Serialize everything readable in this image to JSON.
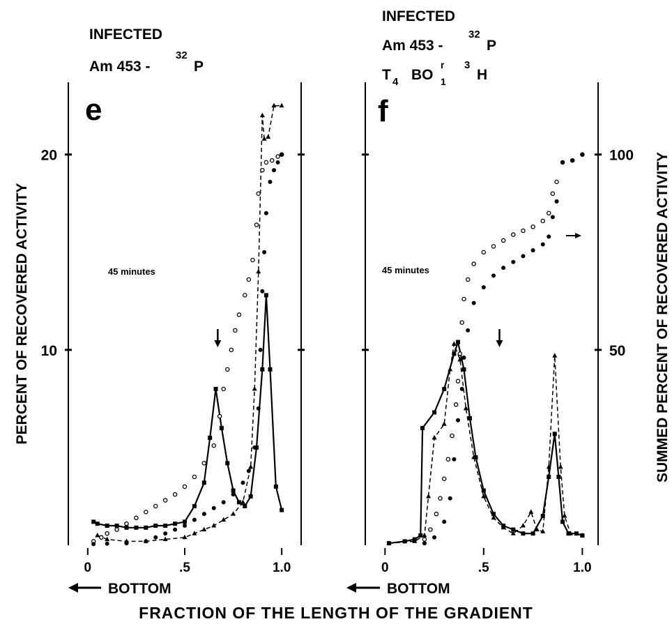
{
  "chart_data": [
    {
      "type": "line",
      "panel": "e",
      "header": [
        [
          "INFECTED"
        ],
        [
          "Am 453 -",
          "32",
          "P"
        ]
      ],
      "annotation": "45 minutes",
      "bottom_label": "BOTTOM",
      "ylabel": "PERCENT OF RECOVERED ACTIVITY",
      "xlabel": "FRACTION OF THE LENGTH OF THE GRADIENT",
      "xlim": [
        -0.1,
        1.1
      ],
      "xticks": [
        0,
        {
          "value": 0.5,
          "label": ".5"
        },
        {
          "value": 1,
          "label": "1.0"
        }
      ],
      "ylim": [
        0,
        23.7
      ],
      "yticks": [
        10,
        20
      ],
      "ytick_labels": true,
      "y2lim": [
        0,
        118.5
      ],
      "y2ticks": [
        50,
        100
      ],
      "y2tick_labels": false,
      "arrow_x": 0.67,
      "series": [
        {
          "color": "#000",
          "line": "solid",
          "marker": "square",
          "x": [
            0.03,
            0.05,
            0.1,
            0.15,
            0.2,
            0.25,
            0.3,
            0.35,
            0.4,
            0.45,
            0.5,
            0.55,
            0.6,
            0.63,
            0.66,
            0.69,
            0.72,
            0.75,
            0.78,
            0.81,
            0.84,
            0.87,
            0.9,
            0.92,
            0.94,
            0.97,
            1.0
          ],
          "values": [
            1.2,
            1.1,
            1.0,
            1.0,
            0.9,
            0.9,
            0.9,
            1.0,
            1.0,
            1.1,
            1.2,
            2.0,
            3.2,
            5.5,
            8.0,
            6.0,
            4.2,
            2.8,
            2.2,
            2.0,
            2.5,
            5.0,
            9.0,
            12.8,
            9.0,
            3.0,
            1.8
          ]
        },
        {
          "color": "#000",
          "line": "dashed",
          "marker": "triangle",
          "x": [
            0.05,
            0.1,
            0.2,
            0.3,
            0.4,
            0.5,
            0.55,
            0.6,
            0.65,
            0.7,
            0.75,
            0.8,
            0.84,
            0.86,
            0.88,
            0.9,
            0.91,
            0.93,
            0.96,
            1.0
          ],
          "values": [
            0.5,
            0.3,
            0.2,
            0.2,
            0.3,
            0.4,
            0.6,
            0.8,
            1.0,
            1.3,
            1.6,
            2.2,
            4.0,
            8.0,
            14.0,
            22.0,
            20.8,
            20.9,
            22.5,
            22.5
          ]
        },
        {
          "color": "#000",
          "line": "none",
          "marker": "open-circle",
          "axis": "y2",
          "x": [
            0.03,
            0.07,
            0.1,
            0.15,
            0.2,
            0.25,
            0.3,
            0.35,
            0.4,
            0.45,
            0.5,
            0.55,
            0.6,
            0.65,
            0.68,
            0.7,
            0.72,
            0.74,
            0.76,
            0.78,
            0.81,
            0.83,
            0.85,
            0.87,
            0.88,
            0.9,
            0.92,
            0.95,
            0.98,
            1.0
          ],
          "values": [
            1,
            2,
            3,
            4,
            5.5,
            7,
            8.5,
            10,
            11.5,
            13,
            15,
            17.5,
            21,
            25.5,
            33,
            40,
            45,
            50,
            55,
            59,
            64,
            68,
            73,
            82,
            90,
            96,
            98,
            98.5,
            99.5,
            100
          ]
        },
        {
          "color": "#000",
          "line": "none",
          "marker": "filled-circle",
          "axis": "y2",
          "x": [
            0.03,
            0.1,
            0.2,
            0.3,
            0.35,
            0.4,
            0.45,
            0.5,
            0.55,
            0.6,
            0.65,
            0.7,
            0.75,
            0.8,
            0.83,
            0.86,
            0.88,
            0.89,
            0.9,
            0.91,
            0.92,
            0.94,
            0.96,
            0.98,
            1.0
          ],
          "values": [
            0.3,
            0.4,
            0.5,
            1,
            2,
            3,
            4,
            5,
            6.5,
            8,
            9.5,
            11,
            13,
            16,
            19,
            25,
            35,
            50,
            65,
            75,
            85,
            93,
            96,
            98,
            100
          ]
        }
      ]
    },
    {
      "type": "line",
      "panel": "f",
      "header": [
        [
          "INFECTED"
        ],
        [
          "Am 453 -",
          "32",
          "P"
        ],
        [
          "T",
          "4",
          "BO",
          "r",
          "1",
          "3",
          "H"
        ]
      ],
      "annotation": "45 minutes",
      "bottom_label": "BOTTOM",
      "y2label": "SUMMED PERCENT OF RECOVERED ACTIVITY",
      "xlim": [
        -0.1,
        1.08
      ],
      "xticks": [
        0,
        {
          "value": 0.5,
          "label": ".5"
        },
        {
          "value": 1,
          "label": "1.0"
        }
      ],
      "ylim": [
        0,
        23.7
      ],
      "yticks": [
        10,
        20
      ],
      "ytick_labels": false,
      "y2lim": [
        0,
        118.5
      ],
      "y2ticks": [
        50,
        100
      ],
      "y2tick_labels": true,
      "arrow_x": 0.58,
      "series": [
        {
          "color": "#000",
          "line": "solid",
          "marker": "square",
          "x": [
            0.02,
            0.1,
            0.15,
            0.18,
            0.19,
            0.25,
            0.3,
            0.35,
            0.37,
            0.4,
            0.43,
            0.46,
            0.5,
            0.55,
            0.6,
            0.65,
            0.7,
            0.75,
            0.8,
            0.83,
            0.86,
            0.88,
            0.9,
            0.93,
            0.97,
            1.0
          ],
          "values": [
            0.1,
            0.2,
            0.3,
            0.5,
            6.0,
            6.8,
            8.0,
            9.8,
            10.4,
            9.0,
            6.5,
            4.5,
            2.8,
            1.6,
            1.0,
            0.8,
            0.6,
            0.6,
            1.5,
            3.5,
            5.7,
            3.5,
            1.2,
            0.6,
            0.6,
            0.5
          ]
        },
        {
          "color": "#000",
          "line": "dashed",
          "marker": "triangle",
          "x": [
            0.02,
            0.15,
            0.2,
            0.22,
            0.25,
            0.3,
            0.33,
            0.35,
            0.38,
            0.41,
            0.45,
            0.5,
            0.55,
            0.6,
            0.65,
            0.7,
            0.74,
            0.77,
            0.8,
            0.83,
            0.86,
            0.89,
            0.91,
            0.94,
            1.0
          ],
          "values": [
            0.1,
            0.2,
            0.5,
            2.5,
            5.5,
            6.2,
            9.0,
            10.3,
            9.5,
            7.0,
            4.5,
            2.5,
            1.4,
            0.9,
            0.6,
            1.0,
            1.7,
            0.8,
            0.7,
            4.0,
            9.7,
            4.0,
            1.5,
            0.6,
            0.5
          ]
        },
        {
          "color": "#000",
          "line": "none",
          "marker": "open-circle",
          "axis": "y2",
          "x": [
            0.2,
            0.23,
            0.26,
            0.28,
            0.3,
            0.32,
            0.34,
            0.36,
            0.37,
            0.38,
            0.39,
            0.4,
            0.42,
            0.45,
            0.5,
            0.55,
            0.6,
            0.65,
            0.7,
            0.75,
            0.8,
            0.83,
            0.85,
            0.87,
            0.9,
            0.95,
            1.0
          ],
          "values": [
            1.5,
            4,
            8,
            12,
            17,
            22,
            28,
            36,
            42,
            49,
            57,
            63,
            68,
            72,
            75,
            76.5,
            78,
            79.5,
            80.5,
            81.5,
            83,
            85,
            90,
            93,
            98,
            98.5,
            100
          ]
        },
        {
          "color": "#000",
          "line": "none",
          "marker": "filled-circle",
          "axis": "y2",
          "x": [
            0.2,
            0.25,
            0.3,
            0.33,
            0.35,
            0.37,
            0.39,
            0.4,
            0.42,
            0.45,
            0.5,
            0.55,
            0.6,
            0.65,
            0.7,
            0.75,
            0.8,
            0.83,
            0.85,
            0.87,
            0.9,
            0.95,
            1.0
          ],
          "values": [
            0.5,
            2,
            6,
            12,
            22,
            32,
            40,
            48,
            55,
            62,
            66,
            69,
            71,
            72.5,
            74,
            75.5,
            77,
            79,
            84,
            88,
            98,
            98.5,
            100
          ]
        }
      ]
    }
  ]
}
